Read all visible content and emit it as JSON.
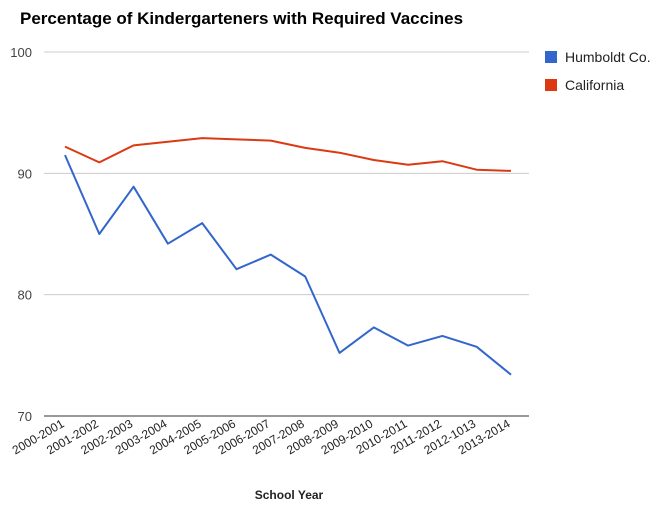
{
  "chart_data": {
    "type": "line",
    "title": "Percentage of Kindergarteners with Required Vaccines",
    "xlabel": "School Year",
    "ylabel": "",
    "ylim": [
      70,
      100
    ],
    "yticks": [
      70,
      80,
      90,
      100
    ],
    "grid": true,
    "legend_position": "right",
    "categories": [
      "2000-2001",
      "2001-2002",
      "2002-2003",
      "2003-2004",
      "2004-2005",
      "2005-2006",
      "2006-2007",
      "2007-2008",
      "2008-2009",
      "2009-2010",
      "2010-2011",
      "2011-2012",
      "2012-1013",
      "2013-2014"
    ],
    "series": [
      {
        "name": "Humboldt Co.",
        "color": "#3366cc",
        "values": [
          91.5,
          85.0,
          88.9,
          84.2,
          85.9,
          82.1,
          83.3,
          81.5,
          75.2,
          77.3,
          75.8,
          76.6,
          75.7,
          73.4
        ]
      },
      {
        "name": "California",
        "color": "#dc3912",
        "values": [
          92.2,
          90.9,
          92.3,
          92.6,
          92.9,
          92.8,
          92.7,
          92.1,
          91.7,
          91.1,
          90.7,
          91.0,
          90.3,
          90.2
        ]
      }
    ]
  }
}
